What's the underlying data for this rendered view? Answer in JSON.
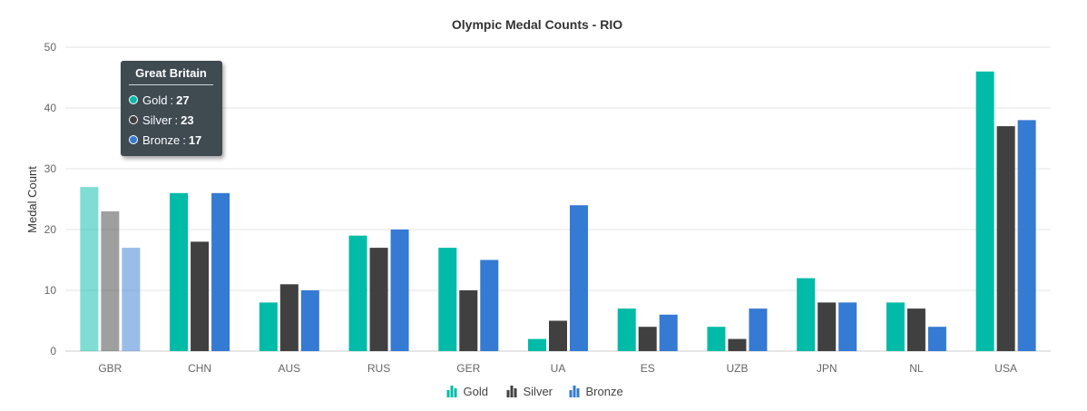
{
  "chart_data": {
    "type": "bar",
    "title": "Olympic Medal Counts - RIO",
    "xlabel": "",
    "ylabel": "Medal Count",
    "ylim": [
      0,
      50
    ],
    "yticks": [
      0,
      10,
      20,
      30,
      40,
      50
    ],
    "grid": true,
    "legend_position": "bottom",
    "categories": [
      "GBR",
      "CHN",
      "AUS",
      "RUS",
      "GER",
      "UA",
      "ES",
      "UZB",
      "JPN",
      "NL",
      "USA"
    ],
    "series": [
      {
        "name": "Gold",
        "color": "#00bba8",
        "values": [
          27,
          26,
          8,
          19,
          17,
          2,
          7,
          4,
          12,
          8,
          46
        ]
      },
      {
        "name": "Silver",
        "color": "#404040",
        "values": [
          23,
          18,
          11,
          17,
          10,
          5,
          4,
          2,
          8,
          7,
          37
        ]
      },
      {
        "name": "Bronze",
        "color": "#357ad3",
        "values": [
          17,
          26,
          10,
          20,
          15,
          24,
          6,
          7,
          8,
          4,
          38
        ]
      }
    ],
    "highlighted_category": "GBR"
  },
  "tooltip": {
    "title": "Great Britain",
    "rows": [
      {
        "label": "Gold",
        "value": "27",
        "color": "#00bba8"
      },
      {
        "label": "Silver",
        "value": "23",
        "color": "#404040"
      },
      {
        "label": "Bronze",
        "value": "17",
        "color": "#357ad3"
      }
    ]
  }
}
